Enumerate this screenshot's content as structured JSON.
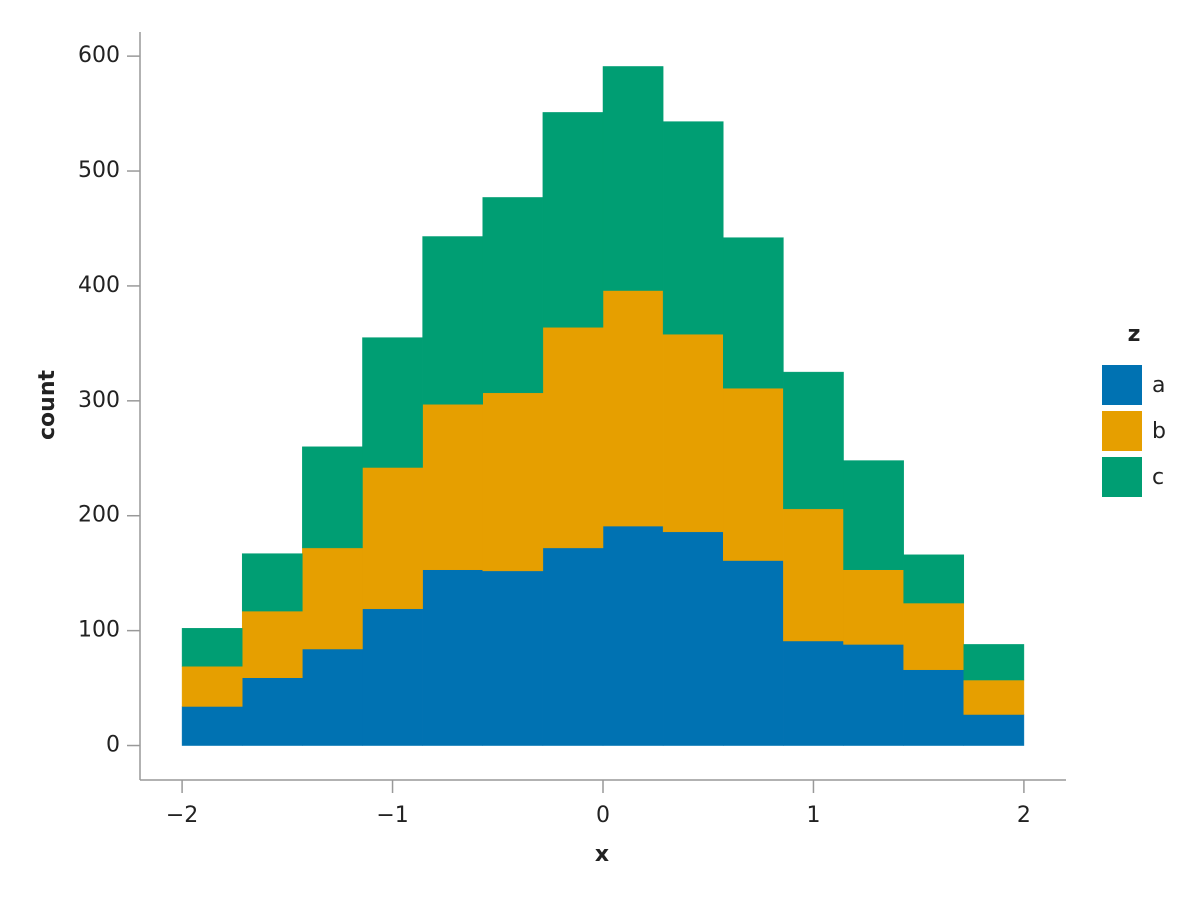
{
  "chart_data": {
    "type": "histogram",
    "x_label": "x",
    "y_label": "count",
    "legend_title": "z",
    "stacked": true,
    "bins": [
      -2,
      -1.7142857142857142,
      -1.4285714285714286,
      -1.1428571428571428,
      -0.8571428571428571,
      -0.5714285714285714,
      -0.2857142857142857,
      0,
      0.2857142857142857,
      0.5714285714285714,
      0.8571428571428571,
      1.1428571428571428,
      1.4285714285714286,
      1.7142857142857142,
      2
    ],
    "series": [
      {
        "name": "a",
        "color": "#0072b2",
        "values": [
          34,
          59,
          84,
          119,
          153,
          152,
          172,
          191,
          186,
          161,
          91,
          88,
          66,
          27
        ]
      },
      {
        "name": "b",
        "color": "#e69f00",
        "values": [
          35,
          58,
          88,
          123,
          144,
          155,
          192,
          205,
          172,
          150,
          115,
          65,
          58,
          30
        ]
      },
      {
        "name": "c",
        "color": "#009e73",
        "values": [
          33,
          50,
          88,
          113,
          146,
          170,
          187,
          195,
          185,
          131,
          119,
          95,
          42,
          31
        ]
      }
    ],
    "xlim": [
      -2.2,
      2.2
    ],
    "ylim": [
      -30,
      621
    ],
    "xticks": [
      {
        "value": -2,
        "label": "−2"
      },
      {
        "value": -1,
        "label": "−1"
      },
      0,
      1,
      2
    ],
    "yticks": [
      0,
      100,
      200,
      300,
      400,
      500,
      600
    ]
  }
}
